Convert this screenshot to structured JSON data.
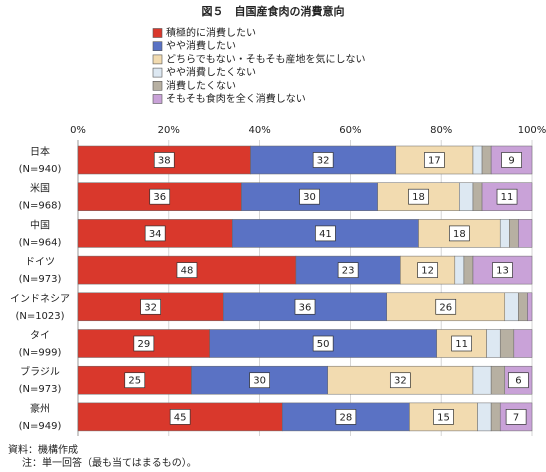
{
  "chart_data": {
    "type": "stacked_bar_horizontal",
    "title": "図５　自国産食肉の消費意向",
    "categories": [
      "日本",
      "米国",
      "中国",
      "ドイツ",
      "インドネシア",
      "タイ",
      "ブラジル",
      "豪州"
    ],
    "category_notes": [
      "(N=940)",
      "(N=968)",
      "(N=964)",
      "(N=973)",
      "(N=1023)",
      "(N=999)",
      "(N=973)",
      "(N=949)"
    ],
    "series": [
      {
        "name": "積極的に消費したい",
        "color": "#d9382c",
        "values": [
          38,
          36,
          34,
          48,
          32,
          29,
          25,
          45
        ]
      },
      {
        "name": "やや消費したい",
        "color": "#5a72c4",
        "values": [
          32,
          30,
          41,
          23,
          36,
          50,
          30,
          28
        ]
      },
      {
        "name": "どちらでもない・そもそも産地を気にしない",
        "color": "#f2dbb0",
        "values": [
          17,
          18,
          18,
          12,
          26,
          11,
          32,
          15
        ]
      },
      {
        "name": "やや消費したくない",
        "color": "#dde8f2",
        "values": [
          2,
          3,
          2,
          2,
          3,
          3,
          4,
          3
        ]
      },
      {
        "name": "消費したくない",
        "color": "#b7b0a2",
        "values": [
          2,
          2,
          2,
          2,
          2,
          3,
          3,
          2
        ]
      },
      {
        "name": "そもそも食肉を全く消費しない",
        "color": "#c9a2d8",
        "values": [
          9,
          11,
          3,
          13,
          1,
          4,
          6,
          7
        ]
      }
    ],
    "xlim": [
      0,
      100
    ],
    "xticks": [
      {
        "value": 0,
        "label": "0%"
      },
      {
        "value": 20,
        "label": "20%"
      },
      {
        "value": 40,
        "label": "40%"
      },
      {
        "value": 60,
        "label": "60%"
      },
      {
        "value": 80,
        "label": "80%"
      },
      {
        "value": 100,
        "label": "100%"
      }
    ],
    "grid": true,
    "notes": [
      "資料：機構作成",
      "注：単一回答（最も当てはまるもの）。"
    ]
  }
}
